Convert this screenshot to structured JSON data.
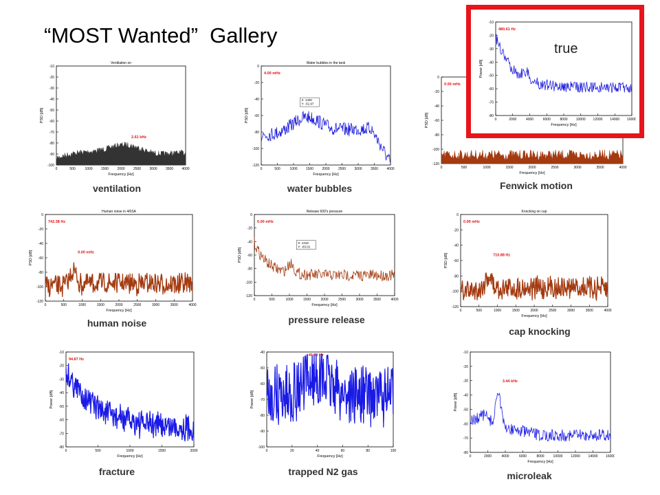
{
  "slide": {
    "title": "“MOST Wanted”  Gallery",
    "highlight_label": "true"
  },
  "panels": [
    {
      "id": "ventilation",
      "caption": "ventilation",
      "plot_title": "Ventilation on",
      "annotation": "2.61 kHz",
      "ylabel": "PSD [dB]",
      "xlabel": "Frequency [Hz]",
      "yticks": [
        "-10",
        "-20",
        "-30",
        "-40",
        "-50",
        "-60",
        "-70",
        "-80",
        "-90",
        "-100"
      ],
      "xticks": [
        "0",
        "500",
        "1000",
        "1500",
        "2000",
        "2500",
        "3000",
        "3500",
        "4000"
      ],
      "color": "#333333",
      "style": "area"
    },
    {
      "id": "water-bubbles",
      "caption": "water bubbles",
      "plot_title": "Water bubbles in the tank",
      "annotation": "4.00 mHz",
      "ylabel": "PSD [dB]",
      "xlabel": "Frequency [Hz]",
      "yticks": [
        "0",
        "-20",
        "-40",
        "-60",
        "-80",
        "-100",
        "-120"
      ],
      "xticks": [
        "0",
        "500",
        "1000",
        "1500",
        "2000",
        "2500",
        "3000",
        "3500",
        "4000"
      ],
      "color": "#1a1adb",
      "style": "line",
      "datatip": [
        "X: 1400",
        "Y: -51.97"
      ]
    },
    {
      "id": "fenwick-motion",
      "caption": "Fenwick motion",
      "plot_title": "",
      "annotation": "0.00 mHz",
      "ylabel": "PSD [dB]",
      "xlabel": "Frequency [Hz]",
      "yticks": [
        "0",
        "-20",
        "-40",
        "-60",
        "-80",
        "-100",
        "-120"
      ],
      "xticks": [
        "0",
        "500",
        "1000",
        "1500",
        "2000",
        "2500",
        "3000",
        "3500",
        "4000"
      ],
      "color": "#a33a10",
      "style": "band"
    },
    {
      "id": "human-noise",
      "caption": "human noise",
      "plot_title": "Human noise in 4/6SA",
      "annotation": "742.38 Hz",
      "ylabel": "PSD [dB]",
      "xlabel": "Frequency [Hz]",
      "annotation2": "0.00 mHz",
      "yticks": [
        "0",
        "-20",
        "-40",
        "-60",
        "-80",
        "-100",
        "-120"
      ],
      "xticks": [
        "0",
        "500",
        "1000",
        "1500",
        "2000",
        "2500",
        "3000",
        "3500",
        "4000"
      ],
      "color": "#a33a10",
      "style": "noise"
    },
    {
      "id": "pressure-release",
      "caption": "pressure release",
      "plot_title": "Release 600's pressure",
      "annotation": "0.00 mHz",
      "ylabel": "PSD [dB]",
      "xlabel": "Frequency [Hz]",
      "yticks": [
        "0",
        "-20",
        "-40",
        "-60",
        "-80",
        "-100",
        "-120"
      ],
      "xticks": [
        "0",
        "500",
        "1000",
        "1500",
        "2000",
        "2500",
        "3000",
        "3500",
        "4000"
      ],
      "color": "#a33a10",
      "style": "decay",
      "datatip": [
        "X: 1418",
        "Y: -83.01"
      ]
    },
    {
      "id": "cap-knocking",
      "caption": "cap knocking",
      "plot_title": "Knocking on cap",
      "annotation": "0.00 mHz",
      "annotation2": "710.88 Hz",
      "ylabel": "PSD [dB]",
      "xlabel": "Frequency [Hz]",
      "yticks": [
        "0",
        "-20",
        "-40",
        "-60",
        "-80",
        "-100",
        "-120"
      ],
      "xticks": [
        "0",
        "500",
        "1000",
        "1500",
        "2000",
        "2500",
        "3000",
        "3500",
        "4000"
      ],
      "color": "#a33a10",
      "style": "noise"
    },
    {
      "id": "fracture",
      "caption": "fracture",
      "plot_title": "",
      "annotation": "94.87 Hz",
      "ylabel": "Power [dB]",
      "xlabel": "Frequency [Hz]",
      "yticks": [
        "-10",
        "-20",
        "-30",
        "-40",
        "-50",
        "-60",
        "-70",
        "-80"
      ],
      "xticks": [
        "0",
        "500",
        "1000",
        "1500",
        "2000"
      ],
      "color": "#1a1ae6",
      "style": "decay-thick"
    },
    {
      "id": "trapped-n2-gas",
      "caption": "trapped N2 gas",
      "plot_title": "",
      "annotation": "40.23 Hz",
      "ylabel": "Power [dB]",
      "xlabel": "Frequency [Hz]",
      "yticks": [
        "-40",
        "-50",
        "-60",
        "-70",
        "-80",
        "-90",
        "-100"
      ],
      "xticks": [
        "0",
        "20",
        "40",
        "60",
        "80",
        "100"
      ],
      "color": "#1a1ae6",
      "style": "dense"
    },
    {
      "id": "microleak",
      "caption": "microleak",
      "plot_title": "",
      "annotation": "3.44 kHz",
      "ylabel": "Power [dB]",
      "xlabel": "Frequency [Hz]",
      "yticks": [
        "-10",
        "-20",
        "-30",
        "-40",
        "-50",
        "-60",
        "-70",
        "-80"
      ],
      "xticks": [
        "0",
        "2000",
        "4000",
        "6000",
        "8000",
        "10000",
        "12000",
        "14000",
        "16000"
      ],
      "color": "#1a1ae6",
      "style": "peak-line"
    },
    {
      "id": "highlight",
      "caption": "",
      "plot_title": "",
      "annotation": "480.61 Hz",
      "ylabel": "Power [dB]",
      "xlabel": "Frequency [Hz]",
      "yticks": [
        "-10",
        "-20",
        "-30",
        "-40",
        "-50",
        "-60",
        "-70",
        "-80"
      ],
      "xticks": [
        "0",
        "2000",
        "4000",
        "6000",
        "8000",
        "10000",
        "12000",
        "14000",
        "16000"
      ],
      "color": "#1a1adb",
      "style": "peak-decay"
    }
  ]
}
